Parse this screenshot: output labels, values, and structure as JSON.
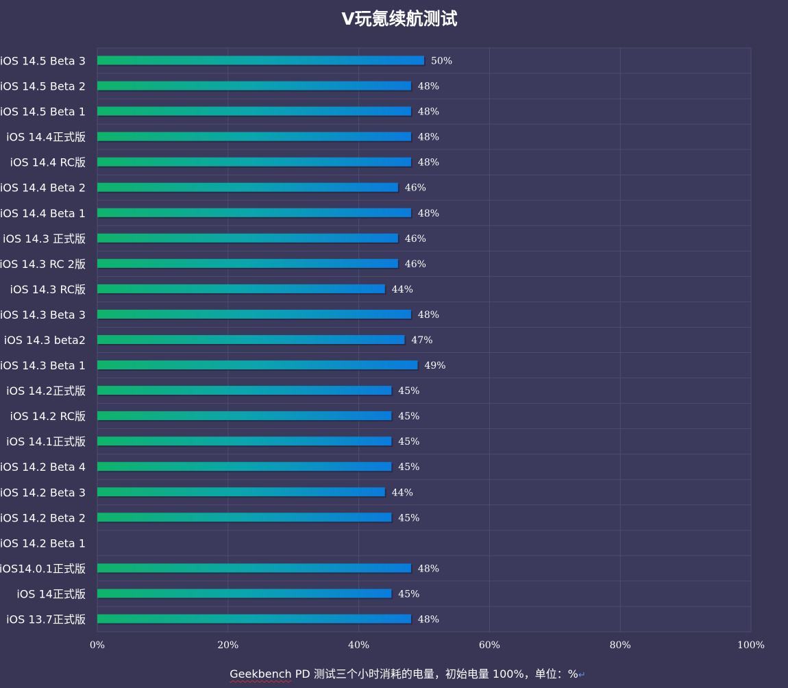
{
  "page": {
    "title": "V玩氪续航测试",
    "footnote_brand": "Geekbench",
    "footnote_text": " PD 测试三个小时消耗的电量，初始电量 100%，单位：%",
    "footnote_mark": "↵"
  },
  "colors": {
    "background": "#383654",
    "plot_background": "#3b3a5c",
    "grid": "#4e4c6e",
    "bar_start": "#0fb46a",
    "bar_mid": "#0aa5ae",
    "bar_end": "#0a7bdc",
    "text": "#ffffff"
  },
  "chart_data": {
    "type": "bar",
    "orientation": "horizontal",
    "title": "V玩氪续航测试",
    "xlabel": "",
    "ylabel": "",
    "xlim": [
      0,
      100
    ],
    "x_ticks": [
      "0%",
      "20%",
      "40%",
      "60%",
      "80%",
      "100%"
    ],
    "grid": true,
    "categories": [
      "iOS 14.5  Beta 3",
      "iOS 14.5  Beta 2",
      "iOS 14.5  Beta 1",
      "iOS 14.4正式版",
      "iOS 14.4 RC版",
      "iOS 14.4  Beta 2",
      "iOS 14.4  Beta 1",
      "iOS 14.3 正式版",
      "iOS 14.3 RC 2版",
      "iOS 14.3 RC版",
      "iOS 14.3  Beta 3",
      "iOS 14.3  beta2",
      "iOS 14.3  Beta 1",
      "iOS 14.2正式版",
      "iOS 14.2 RC版",
      "iOS 14.1正式版",
      "iOS 14.2  Beta 4",
      "iOS 14.2  Beta 3",
      "iOS 14.2  Beta 2",
      "iOS 14.2  Beta 1",
      "iOS14.0.1正式版",
      "iOS 14正式版",
      "iOS 13.7正式版"
    ],
    "values": [
      50,
      48,
      48,
      48,
      48,
      46,
      48,
      46,
      46,
      44,
      48,
      47,
      49,
      45,
      45,
      45,
      45,
      44,
      45,
      null,
      48,
      45,
      48
    ],
    "labels": [
      "50%",
      "48%",
      "48%",
      "48%",
      "48%",
      "46%",
      "48%",
      "46%",
      "46%",
      "44%",
      "48%",
      "47%",
      "49%",
      "45%",
      "45%",
      "45%",
      "45%",
      "44%",
      "45%",
      "",
      "48%",
      "45%",
      "48%"
    ]
  }
}
